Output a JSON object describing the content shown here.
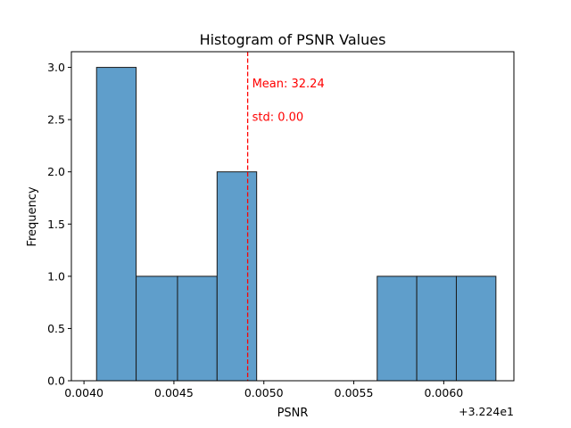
{
  "chart_data": {
    "type": "bar",
    "title": "Histogram of PSNR Values",
    "xlabel": "PSNR",
    "ylabel": "Frequency",
    "offset_text": "+3.224e1",
    "bins": [
      {
        "x0": 0.00407,
        "x1": 0.00429,
        "count": 3
      },
      {
        "x0": 0.00429,
        "x1": 0.00452,
        "count": 1
      },
      {
        "x0": 0.00452,
        "x1": 0.00474,
        "count": 1
      },
      {
        "x0": 0.00474,
        "x1": 0.00496,
        "count": 2
      },
      {
        "x0": 0.00496,
        "x1": 0.00518,
        "count": 0
      },
      {
        "x0": 0.00518,
        "x1": 0.0054,
        "count": 0
      },
      {
        "x0": 0.0054,
        "x1": 0.00563,
        "count": 0
      },
      {
        "x0": 0.00563,
        "x1": 0.00585,
        "count": 1
      },
      {
        "x0": 0.00585,
        "x1": 0.00607,
        "count": 1
      },
      {
        "x0": 0.00607,
        "x1": 0.00629,
        "count": 1
      }
    ],
    "xlim": [
      0.00393,
      0.00639
    ],
    "ylim": [
      0,
      3.15
    ],
    "xticks": [
      0.004,
      0.0045,
      0.005,
      0.0055,
      0.006
    ],
    "xtick_labels": [
      "0.0040",
      "0.0045",
      "0.0050",
      "0.0055",
      "0.0060"
    ],
    "yticks": [
      0.0,
      0.5,
      1.0,
      1.5,
      2.0,
      2.5,
      3.0
    ],
    "ytick_labels": [
      "0.0",
      "0.5",
      "1.0",
      "1.5",
      "2.0",
      "2.5",
      "3.0"
    ],
    "mean_line": {
      "x": 0.00491
    },
    "annotations": [
      {
        "text": "Mean: 32.24",
        "x": 0.00491,
        "y": 2.85
      },
      {
        "text": "std: 0.00",
        "x": 0.00491,
        "y": 2.53
      }
    ],
    "grid": false,
    "colors": {
      "bar_fill": "#5f9ecb",
      "bar_edge": "#1a1a1a",
      "annotation": "#ff0000",
      "axis": "#000000"
    }
  }
}
